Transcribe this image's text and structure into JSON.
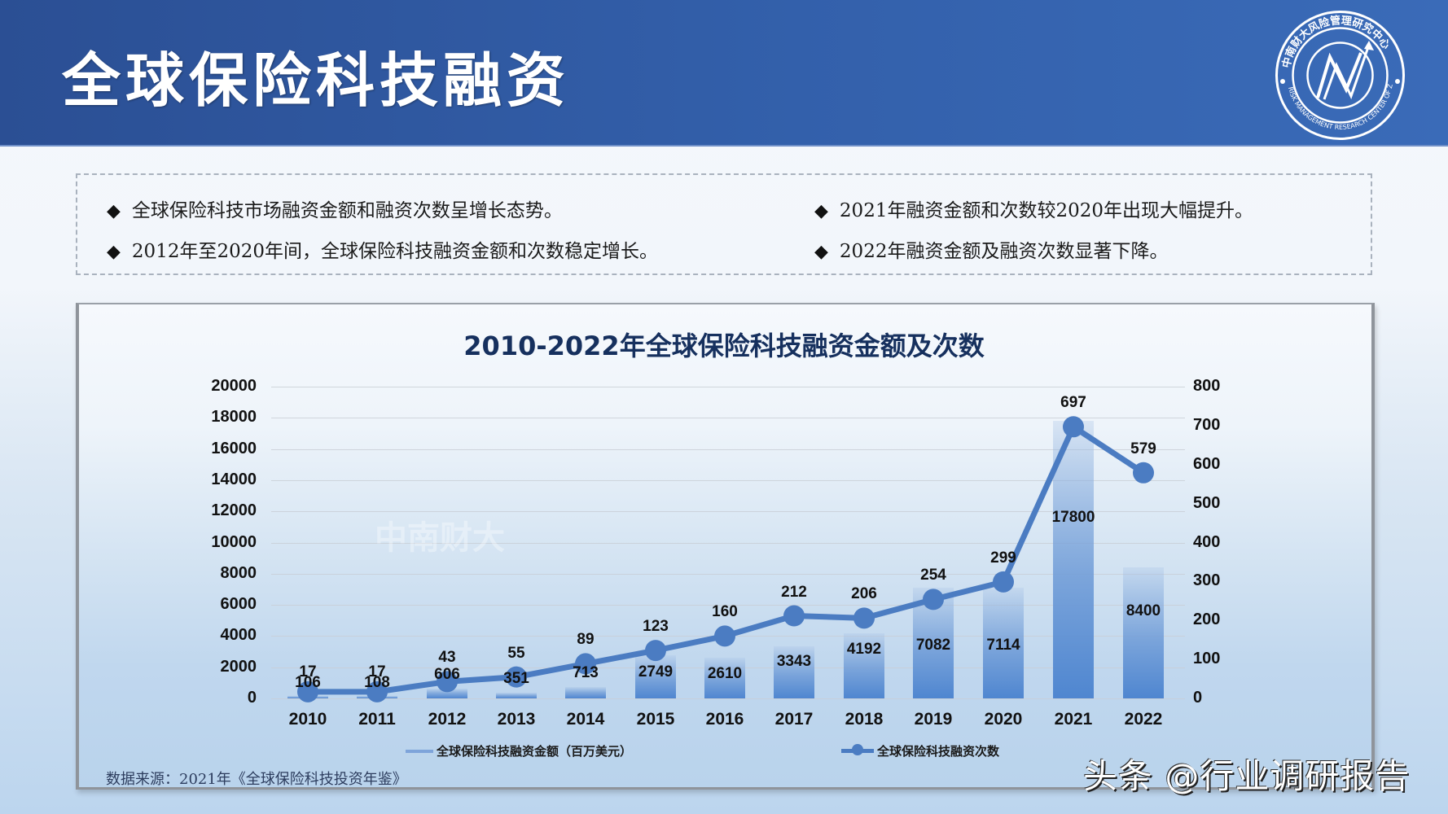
{
  "header": {
    "title": "全球保险科技融资",
    "logo": {
      "icon": "research-center-seal-icon",
      "text_cn": "中南财大风险管理研究中心",
      "text_en": "RISK MANAGEMENT RESEARCH CENTER OF ZUEL"
    }
  },
  "bullets": [
    {
      "icon": "diamond-bullet-icon",
      "text": "全球保险科技市场融资金额和融资次数呈增长态势。"
    },
    {
      "icon": "diamond-bullet-icon",
      "text": "2012年至2020年间，全球保险科技融资金额和次数稳定增长。"
    },
    {
      "icon": "diamond-bullet-icon",
      "text": "2021年融资金额和次数较2020年出现大幅提升。"
    },
    {
      "icon": "diamond-bullet-icon",
      "text": "2022年融资金额及融资次数显著下降。"
    }
  ],
  "chart": {
    "title": "2010-2022年全球保险科技融资金额及次数",
    "left_ticks": [
      "20000",
      "18000",
      "16000",
      "14000",
      "12000",
      "10000",
      "8000",
      "6000",
      "4000",
      "2000",
      "0"
    ],
    "right_ticks": [
      "800",
      "700",
      "600",
      "500",
      "400",
      "300",
      "200",
      "100",
      "0"
    ],
    "years": [
      "2010",
      "2011",
      "2012",
      "2013",
      "2014",
      "2015",
      "2016",
      "2017",
      "2018",
      "2019",
      "2020",
      "2021",
      "2022"
    ],
    "amount_labels": [
      "106",
      "108",
      "606",
      "351",
      "713",
      "2749",
      "2610",
      "3343",
      "4192",
      "7082",
      "7114",
      "17800",
      "8400"
    ],
    "count_labels": [
      "17",
      "17",
      "43",
      "55",
      "89",
      "123",
      "160",
      "212",
      "206",
      "254",
      "299",
      "697",
      "579"
    ],
    "legend": {
      "bar": "全球保险科技融资金额（百万美元）",
      "line": "全球保险科技融资次数"
    },
    "source": "数据来源：2021年《全球保险科技投资年鉴》",
    "colors": {
      "bar": "#4f86d0",
      "line": "#4b7cc2",
      "header": "#2f57a0",
      "title": "#16305e"
    }
  },
  "watermark": "头条 @行业调研报告",
  "chart_data": {
    "type": "bar",
    "title": "2010-2022年全球保险科技融资金额及次数",
    "categories": [
      "2010",
      "2011",
      "2012",
      "2013",
      "2014",
      "2015",
      "2016",
      "2017",
      "2018",
      "2019",
      "2020",
      "2021",
      "2022"
    ],
    "series": [
      {
        "name": "全球保险科技融资金额（百万美元）",
        "type": "bar",
        "axis": "left",
        "values": [
          106,
          108,
          606,
          351,
          713,
          2749,
          2610,
          3343,
          4192,
          7082,
          7114,
          17800,
          8400
        ]
      },
      {
        "name": "全球保险科技融资次数",
        "type": "line",
        "axis": "right",
        "values": [
          17,
          17,
          43,
          55,
          89,
          123,
          160,
          212,
          206,
          254,
          299,
          697,
          579
        ]
      }
    ],
    "xlabel": "",
    "ylabel": "",
    "ylim": [
      0,
      20000
    ],
    "y2lim": [
      0,
      800
    ],
    "grid": true,
    "legend_position": "bottom"
  }
}
